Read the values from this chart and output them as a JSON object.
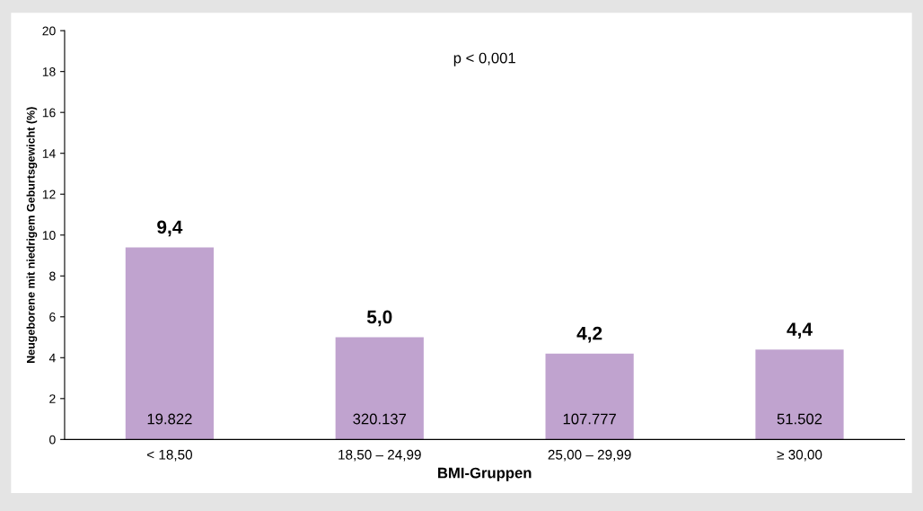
{
  "chart_data": {
    "type": "bar",
    "categories": [
      "< 18,50",
      "18,50 – 24,99",
      "25,00 – 29,99",
      "≥ 30,00"
    ],
    "values": [
      9.4,
      5.0,
      4.2,
      4.4
    ],
    "value_labels": [
      "9,4",
      "5,0",
      "4,2",
      "4,4"
    ],
    "color": "#c0a3cf",
    "xlabel": "BMI-Gruppen",
    "ylabel": "Neugeborene mit niedrigem Geburtsgewicht (%)",
    "ylim": [
      0,
      20
    ],
    "yticks": [
      0,
      2,
      4,
      6,
      8,
      10,
      12,
      14,
      16,
      18,
      20
    ],
    "annotations": [
      "p < 0,001",
      "19.822",
      "320.137",
      "107.777",
      "51.502"
    ],
    "grid": false,
    "legend": false
  }
}
